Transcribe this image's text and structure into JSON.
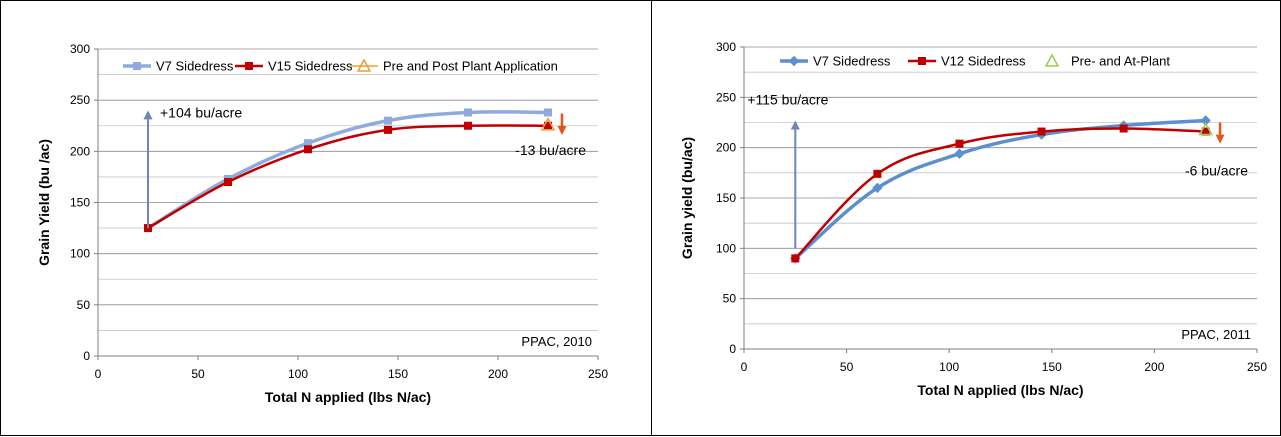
{
  "chart_data": [
    {
      "type": "line",
      "xlabel": "Total N applied (lbs N/ac)",
      "ylabel": "Grain Yield (bu /ac)",
      "xlim": [
        0,
        250
      ],
      "ylim": [
        0,
        300
      ],
      "x_ticks": [
        0,
        50,
        100,
        150,
        200,
        250
      ],
      "y_ticks": [
        0,
        50,
        100,
        150,
        200,
        250,
        300
      ],
      "grid": "horizontal",
      "legend_position": "top",
      "source_label": "PPAC, 2010",
      "series": [
        {
          "name": "V7 Sidedress",
          "color": "#8faadc",
          "marker": "square",
          "x": [
            25,
            65,
            105,
            145,
            185,
            225
          ],
          "y": [
            125,
            173,
            208,
            230,
            238,
            238
          ]
        },
        {
          "name": "V15 Sidedress",
          "color": "#c00000",
          "marker": "square",
          "x": [
            25,
            65,
            105,
            145,
            185,
            225
          ],
          "y": [
            125,
            170,
            202,
            221,
            225,
            225
          ]
        },
        {
          "name": "Pre and Post Plant Application",
          "color": "#ed9b33",
          "marker": "triangle",
          "x": [
            225
          ],
          "y": [
            226
          ]
        }
      ],
      "annotations": [
        {
          "text": "+104 bu/acre",
          "arrow_color": "#6d86b8",
          "x": 25,
          "y_from": 125,
          "y_to": 240
        },
        {
          "text": "-13 bu/acre",
          "arrow_color": "#e5541b",
          "x": 232,
          "y_from": 237,
          "y_to": 216
        }
      ]
    },
    {
      "type": "line",
      "xlabel": "Total N applied (lbs N/ac)",
      "ylabel": "Grain yield (bu/ac)",
      "xlim": [
        0,
        250
      ],
      "ylim": [
        0,
        300
      ],
      "x_ticks": [
        0,
        50,
        100,
        150,
        200,
        250
      ],
      "y_ticks": [
        0,
        50,
        100,
        150,
        200,
        250,
        300
      ],
      "grid": "horizontal",
      "legend_position": "top",
      "source_label": "PPAC, 2011",
      "series": [
        {
          "name": "V7 Sidedress",
          "color": "#5b8fd0",
          "marker": "diamond",
          "x": [
            25,
            65,
            105,
            145,
            185,
            225
          ],
          "y": [
            90,
            160,
            194,
            213,
            222,
            227
          ]
        },
        {
          "name": "V12 Sidedress",
          "color": "#c00000",
          "marker": "square",
          "x": [
            25,
            65,
            105,
            145,
            185,
            225
          ],
          "y": [
            90,
            174,
            204,
            216,
            219,
            216
          ]
        },
        {
          "name": "Pre- and At-Plant",
          "color": "#9acd4e",
          "marker": "triangle",
          "x": [
            225
          ],
          "y": [
            218
          ]
        }
      ],
      "annotations": [
        {
          "text": "+115 bu/acre",
          "arrow_color": "#6d86b8",
          "x": 25,
          "y_from": 100,
          "y_to": 227
        },
        {
          "text": "-6 bu/acre",
          "arrow_color": "#e5541b",
          "x": 232,
          "y_from": 225,
          "y_to": 204
        }
      ]
    }
  ]
}
